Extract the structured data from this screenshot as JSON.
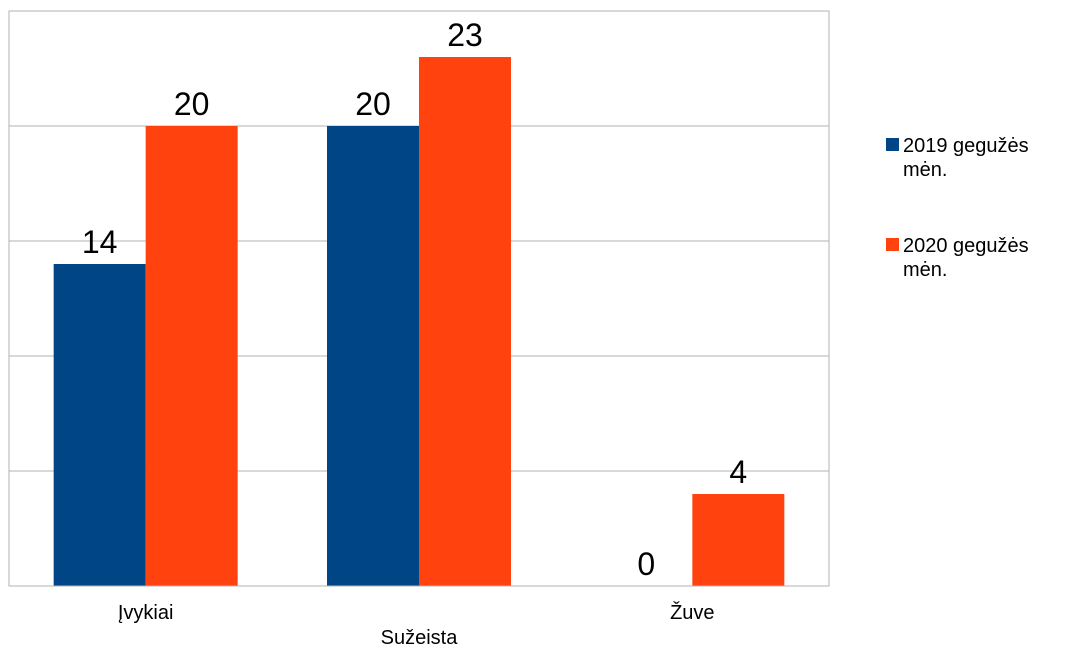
{
  "chart_data": {
    "type": "bar",
    "categories": [
      "Įvykiai",
      "Sužeista",
      "Žuve"
    ],
    "series": [
      {
        "name": "2019 gegužės mėn.",
        "values": [
          14,
          20,
          0
        ],
        "color": "#004586"
      },
      {
        "name": "2020 gegužės mėn.",
        "values": [
          20,
          23,
          4
        ],
        "color": "#ff420e"
      }
    ],
    "ylim": [
      0,
      25
    ],
    "grid": true,
    "legend_position": "right"
  }
}
